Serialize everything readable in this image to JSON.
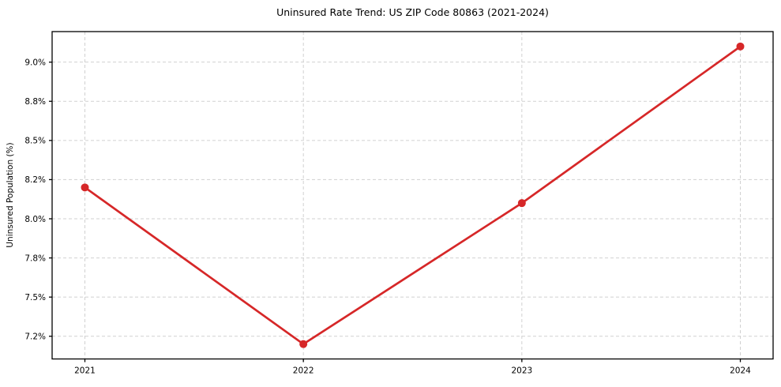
{
  "chart_data": {
    "type": "line",
    "title": "Uninsured Rate Trend: US ZIP Code 80863 (2021-2024)",
    "xlabel": "",
    "ylabel": "Uninsured Population (%)",
    "x": [
      2021,
      2022,
      2023,
      2024
    ],
    "values": [
      8.2,
      7.2,
      8.1,
      9.1
    ],
    "xticks": {
      "values": [
        2021,
        2022,
        2023,
        2024
      ],
      "labels": [
        "2021",
        "2022",
        "2023",
        "2024"
      ]
    },
    "yticks": {
      "values": [
        7.25,
        7.5,
        7.75,
        8.0,
        8.25,
        8.5,
        8.75,
        9.0
      ],
      "labels": [
        "7.2%",
        "7.5%",
        "7.8%",
        "8.0%",
        "8.2%",
        "8.5%",
        "8.8%",
        "9.0%"
      ]
    },
    "xlim": [
      2020.85,
      2024.15
    ],
    "ylim": [
      7.105,
      9.195
    ],
    "grid": true,
    "grid_style": "dashed",
    "legend": "none",
    "line_color": "#d62728",
    "grid_color": "#cccccc",
    "axis_color": "#000000",
    "text_color": "#000000",
    "background": "#ffffff",
    "marker": "circle"
  }
}
